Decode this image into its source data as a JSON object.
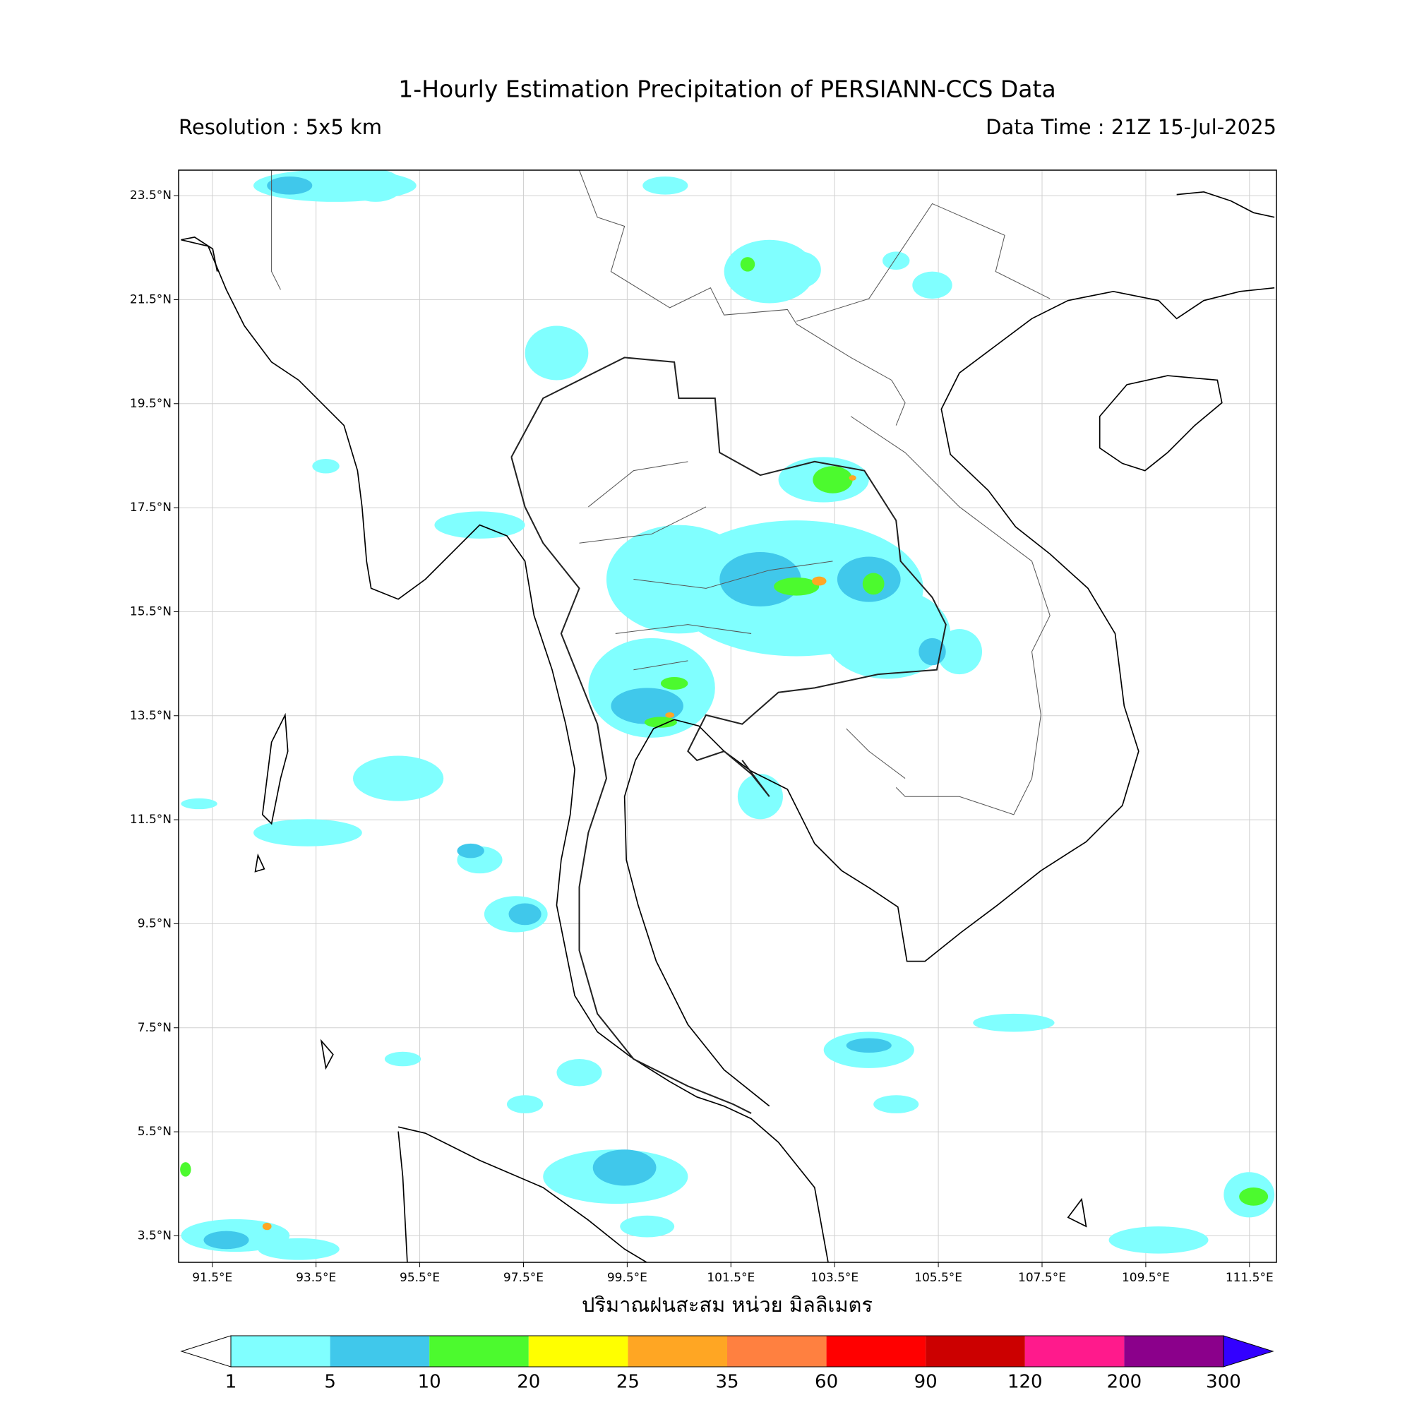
{
  "title": "1-Hourly Estimation Precipitation of PERSIANN-CCS Data",
  "resolution": "Resolution : 5x5 km",
  "data_time": "Data Time : 21Z 15-Jul-2025",
  "x_label": "ปริมาณฝนสะสม หน่วย มิลลิเมตร",
  "map": {
    "xlim": [
      90.85,
      112.02
    ],
    "ylim": [
      2.99,
      23.99
    ],
    "grid": true,
    "xticks": [
      {
        "value": 91.5,
        "label": "91.5°E"
      },
      {
        "value": 93.5,
        "label": "93.5°E"
      },
      {
        "value": 95.5,
        "label": "95.5°E"
      },
      {
        "value": 97.5,
        "label": "97.5°E"
      },
      {
        "value": 99.5,
        "label": "99.5°E"
      },
      {
        "value": 101.5,
        "label": "101.5°E"
      },
      {
        "value": 103.5,
        "label": "103.5°E"
      },
      {
        "value": 105.5,
        "label": "105.5°E"
      },
      {
        "value": 107.5,
        "label": "107.5°E"
      },
      {
        "value": 109.5,
        "label": "109.5°E"
      },
      {
        "value": 111.5,
        "label": "111.5°E"
      }
    ],
    "yticks": [
      {
        "value": 23.5,
        "label": "23.5°N"
      },
      {
        "value": 21.5,
        "label": "21.5°N"
      },
      {
        "value": 19.5,
        "label": "19.5°N"
      },
      {
        "value": 17.5,
        "label": "17.5°N"
      },
      {
        "value": 15.5,
        "label": "15.5°N"
      },
      {
        "value": 13.5,
        "label": "13.5°N"
      },
      {
        "value": 11.5,
        "label": "11.5°N"
      },
      {
        "value": 9.5,
        "label": "9.5°N"
      },
      {
        "value": 7.5,
        "label": "7.5°N"
      },
      {
        "value": 5.5,
        "label": "5.5°N"
      },
      {
        "value": 3.5,
        "label": "3.5°N"
      }
    ]
  },
  "colorbar": {
    "levels": [
      1,
      5,
      10,
      20,
      25,
      35,
      60,
      90,
      120,
      200,
      300
    ],
    "colors": [
      "#80ffff",
      "#40c8eb",
      "#4cfa2e",
      "#ffff00",
      "#ffa623",
      "#ff8040",
      "#ff0000",
      "#cc0000",
      "#ff1a8c",
      "#8b008b",
      "#3300ff"
    ]
  }
}
